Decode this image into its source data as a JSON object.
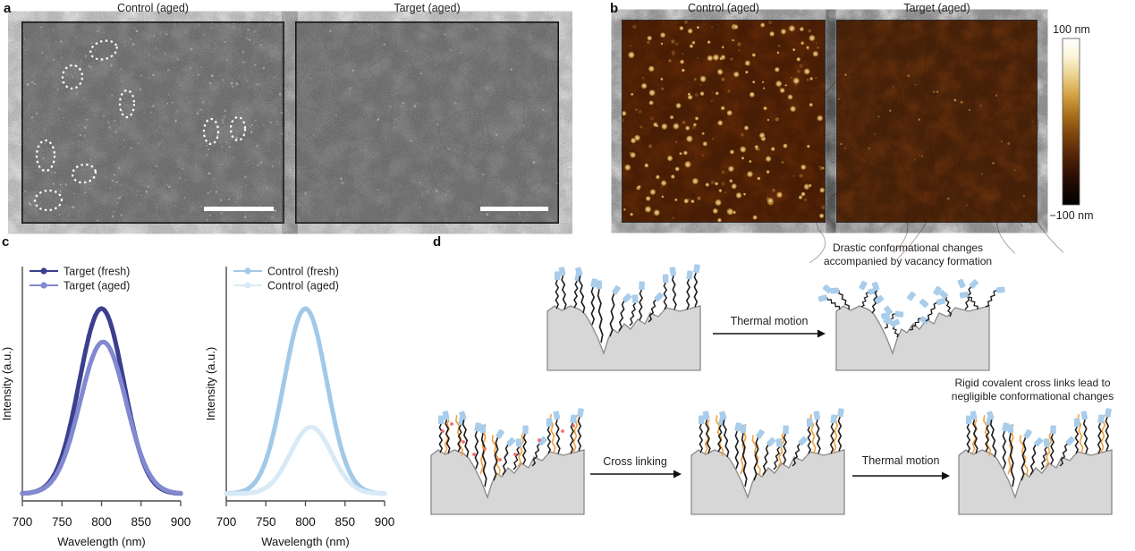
{
  "panel_a": {
    "label": "a",
    "left_title": "Control (aged)",
    "right_title": "Target (aged)"
  },
  "panel_b": {
    "label": "b",
    "left_title": "Control (aged)",
    "right_title": "Target (aged)",
    "colorbar": {
      "top_label": "100 nm",
      "bottom_label": "−100 nm"
    }
  },
  "panel_c": {
    "label": "c"
  },
  "panel_d": {
    "label": "d",
    "caption_top_line1": "Drastic conformational changes",
    "caption_top_line2": "accompanied by vacancy formation",
    "caption_bottom_line1": "Rigid covalent cross links lead to",
    "caption_bottom_line2": "negligible conformational changes",
    "arrow1_label": "Thermal motion",
    "arrow2_label": "Cross linking",
    "arrow3_label": "Thermal motion"
  },
  "chart_data": [
    {
      "type": "line",
      "title": "",
      "xlabel": "Wavelength (nm)",
      "ylabel": "Intensity (a.u.)",
      "xlim": [
        700,
        900
      ],
      "xticks": [
        700,
        750,
        800,
        850,
        900
      ],
      "ylim_note": "arbitrary units, no y tick labels",
      "legend_position": "upper left",
      "series": [
        {
          "name": "Target (fresh)",
          "color": "#3b3f8e",
          "peak_nm": 800,
          "sigma_nm": 28,
          "relative_peak_intensity": 1.0
        },
        {
          "name": "Target (aged)",
          "color": "#8289d0",
          "peak_nm": 802,
          "sigma_nm": 29,
          "relative_peak_intensity": 0.82
        }
      ]
    },
    {
      "type": "line",
      "title": "",
      "xlabel": "Wavelength (nm)",
      "ylabel": "Intensity (a.u.)",
      "xlim": [
        700,
        900
      ],
      "xticks": [
        700,
        750,
        800,
        850,
        900
      ],
      "ylim_note": "arbitrary units, no y tick labels",
      "legend_position": "upper left",
      "series": [
        {
          "name": "Control (fresh)",
          "color": "#a2c9e8",
          "peak_nm": 800,
          "sigma_nm": 27,
          "relative_peak_intensity": 1.0
        },
        {
          "name": "Control (aged)",
          "color": "#d8eaf6",
          "peak_nm": 807,
          "sigma_nm": 26,
          "relative_peak_intensity": 0.36
        }
      ]
    }
  ]
}
